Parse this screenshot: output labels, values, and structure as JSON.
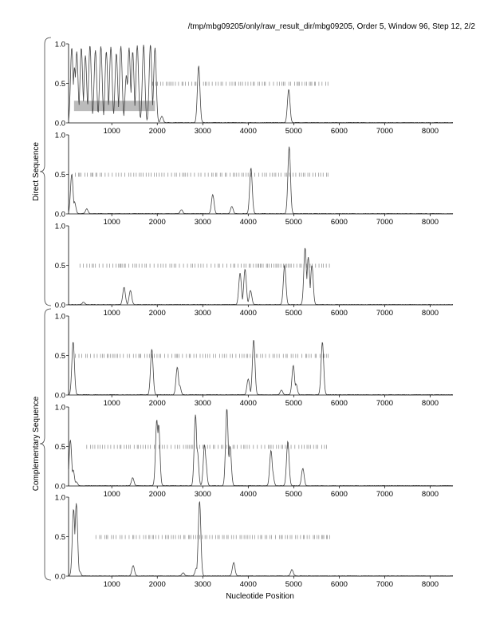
{
  "header": {
    "path_label": "/tmp/mbg09205/only/raw_result_dir/mbg09205, Order 5, Window 96, Step 12, 2/2"
  },
  "group_labels": {
    "direct": "Direct Sequence",
    "complementary": "Complementary Sequence"
  },
  "chart_data": {
    "type": "line",
    "xlabel": "Nucleotide Position",
    "ylabel": "",
    "xlim": [
      50,
      8500
    ],
    "ylim": [
      0,
      1
    ],
    "x_ticks": [
      "1000",
      "2000",
      "3000",
      "4000",
      "5000",
      "6000",
      "7000",
      "8000"
    ],
    "y_ticks": [
      "0.0",
      "0.5",
      "1.0"
    ],
    "grid": false,
    "legend": "none",
    "line_color": "#444444",
    "tick_mark_color": "#888888",
    "highlight_color": "#bbbbbb",
    "panels": [
      {
        "group": "direct",
        "peaks": [
          [
            120,
            0.95
          ],
          [
            180,
            0.7
          ],
          [
            230,
            0.9
          ],
          [
            330,
            0.95
          ],
          [
            420,
            0.85
          ],
          [
            520,
            0.98
          ],
          [
            640,
            0.92
          ],
          [
            760,
            0.97
          ],
          [
            880,
            0.9
          ],
          [
            980,
            0.96
          ],
          [
            1100,
            0.88
          ],
          [
            1200,
            0.97
          ],
          [
            1320,
            0.6
          ],
          [
            1380,
            0.95
          ],
          [
            1460,
            0.9
          ],
          [
            1560,
            0.98
          ],
          [
            1700,
            0.99
          ],
          [
            1850,
            0.99
          ],
          [
            1950,
            0.95
          ],
          [
            2100,
            0.08
          ],
          [
            2910,
            0.72
          ],
          [
            4890,
            0.42
          ]
        ],
        "ticks_range": [
          1900,
          5800
        ],
        "highlight": [
          170,
          1950,
          0.15,
          0.28
        ]
      },
      {
        "group": "direct",
        "peaks": [
          [
            120,
            0.5
          ],
          [
            180,
            0.15
          ],
          [
            450,
            0.06
          ],
          [
            2530,
            0.05
          ],
          [
            3220,
            0.24
          ],
          [
            3640,
            0.09
          ],
          [
            4060,
            0.58
          ],
          [
            4900,
            0.85
          ]
        ],
        "ticks_range": [
          200,
          5800
        ]
      },
      {
        "group": "direct",
        "peaks": [
          [
            380,
            0.03
          ],
          [
            1270,
            0.22
          ],
          [
            1410,
            0.18
          ],
          [
            3820,
            0.4
          ],
          [
            3930,
            0.45
          ],
          [
            4050,
            0.18
          ],
          [
            4800,
            0.5
          ],
          [
            5250,
            0.72
          ],
          [
            5320,
            0.6
          ],
          [
            5400,
            0.5
          ]
        ],
        "ticks_range": [
          300,
          5800
        ]
      },
      {
        "group": "complementary",
        "peaks": [
          [
            150,
            0.67
          ],
          [
            1880,
            0.58
          ],
          [
            2440,
            0.35
          ],
          [
            2490,
            0.12
          ],
          [
            4000,
            0.2
          ],
          [
            4120,
            0.7
          ],
          [
            4730,
            0.06
          ],
          [
            4990,
            0.37
          ],
          [
            5050,
            0.14
          ],
          [
            5630,
            0.67
          ]
        ],
        "ticks_range": [
          200,
          5800
        ]
      },
      {
        "group": "complementary",
        "peaks": [
          [
            90,
            0.58
          ],
          [
            150,
            0.2
          ],
          [
            220,
            0.05
          ],
          [
            1460,
            0.1
          ],
          [
            1990,
            0.84
          ],
          [
            2030,
            0.78
          ],
          [
            2840,
            0.9
          ],
          [
            2880,
            0.45
          ],
          [
            3040,
            0.52
          ],
          [
            3060,
            0.35
          ],
          [
            3530,
            0.98
          ],
          [
            3600,
            0.5
          ],
          [
            4500,
            0.45
          ],
          [
            4530,
            0.2
          ],
          [
            4870,
            0.56
          ],
          [
            5200,
            0.22
          ]
        ],
        "ticks_range": [
          450,
          5800
        ]
      },
      {
        "group": "complementary",
        "peaks": [
          [
            160,
            0.85
          ],
          [
            220,
            0.92
          ],
          [
            290,
            0.06
          ],
          [
            1470,
            0.13
          ],
          [
            2570,
            0.04
          ],
          [
            2860,
            0.1
          ],
          [
            2930,
            0.95
          ],
          [
            3680,
            0.17
          ],
          [
            4960,
            0.08
          ]
        ],
        "ticks_range": [
          650,
          5800
        ]
      }
    ]
  }
}
